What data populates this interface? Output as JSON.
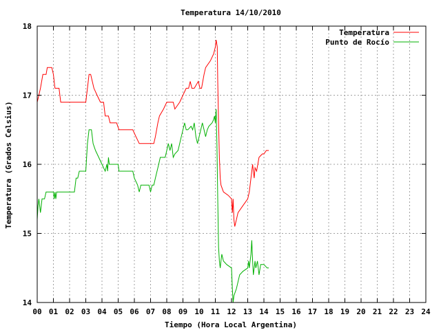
{
  "chart_data": {
    "type": "line",
    "title": "Temperatura 14/10/2010",
    "xlabel": "Tiempo (Hora Local Argentina)",
    "ylabel": "Temperatura (Grados Celsius)",
    "xlim": [
      0,
      24
    ],
    "ylim": [
      14,
      18
    ],
    "xticks": [
      "00",
      "01",
      "02",
      "03",
      "04",
      "05",
      "06",
      "07",
      "08",
      "09",
      "10",
      "11",
      "12",
      "13",
      "14",
      "15",
      "16",
      "17",
      "18",
      "19",
      "20",
      "21",
      "22",
      "23",
      "24"
    ],
    "yticks": [
      "14",
      "15",
      "16",
      "17",
      "18"
    ],
    "grid": true,
    "legend_position": "top-right",
    "series": [
      {
        "name": "Temperatura",
        "color": "#ff0000",
        "points": [
          [
            0.0,
            16.9
          ],
          [
            0.1,
            17.0
          ],
          [
            0.2,
            17.1
          ],
          [
            0.35,
            17.3
          ],
          [
            0.55,
            17.3
          ],
          [
            0.62,
            17.4
          ],
          [
            0.9,
            17.4
          ],
          [
            1.0,
            17.3
          ],
          [
            1.1,
            17.1
          ],
          [
            1.35,
            17.1
          ],
          [
            1.45,
            16.9
          ],
          [
            3.0,
            16.9
          ],
          [
            3.1,
            17.1
          ],
          [
            3.2,
            17.3
          ],
          [
            3.3,
            17.3
          ],
          [
            3.5,
            17.1
          ],
          [
            3.7,
            17.0
          ],
          [
            3.9,
            16.9
          ],
          [
            4.1,
            16.9
          ],
          [
            4.2,
            16.7
          ],
          [
            4.4,
            16.7
          ],
          [
            4.5,
            16.6
          ],
          [
            4.9,
            16.6
          ],
          [
            5.05,
            16.5
          ],
          [
            5.9,
            16.5
          ],
          [
            6.1,
            16.4
          ],
          [
            6.3,
            16.3
          ],
          [
            7.2,
            16.3
          ],
          [
            7.3,
            16.4
          ],
          [
            7.45,
            16.6
          ],
          [
            7.55,
            16.7
          ],
          [
            7.8,
            16.8
          ],
          [
            8.0,
            16.9
          ],
          [
            8.4,
            16.9
          ],
          [
            8.5,
            16.8
          ],
          [
            8.8,
            16.9
          ],
          [
            9.0,
            17.0
          ],
          [
            9.2,
            17.1
          ],
          [
            9.35,
            17.1
          ],
          [
            9.45,
            17.2
          ],
          [
            9.55,
            17.1
          ],
          [
            9.7,
            17.1
          ],
          [
            9.95,
            17.2
          ],
          [
            10.05,
            17.1
          ],
          [
            10.15,
            17.1
          ],
          [
            10.3,
            17.3
          ],
          [
            10.4,
            17.4
          ],
          [
            10.7,
            17.5
          ],
          [
            10.9,
            17.6
          ],
          [
            11.0,
            17.7
          ],
          [
            11.05,
            17.8
          ],
          [
            11.12,
            17.7
          ],
          [
            11.15,
            17.2
          ],
          [
            11.2,
            16.6
          ],
          [
            11.25,
            16.1
          ],
          [
            11.3,
            15.8
          ],
          [
            11.35,
            15.7
          ],
          [
            11.5,
            15.6
          ],
          [
            11.8,
            15.55
          ],
          [
            12.0,
            15.5
          ],
          [
            12.05,
            15.3
          ],
          [
            12.1,
            15.5
          ],
          [
            12.15,
            15.2
          ],
          [
            12.2,
            15.1
          ],
          [
            12.3,
            15.2
          ],
          [
            12.4,
            15.3
          ],
          [
            12.7,
            15.4
          ],
          [
            13.0,
            15.5
          ],
          [
            13.1,
            15.6
          ],
          [
            13.2,
            15.8
          ],
          [
            13.3,
            16.0
          ],
          [
            13.35,
            15.9
          ],
          [
            13.4,
            15.8
          ],
          [
            13.45,
            15.95
          ],
          [
            13.55,
            15.9
          ],
          [
            13.7,
            16.1
          ],
          [
            13.9,
            16.15
          ],
          [
            14.0,
            16.15
          ],
          [
            14.15,
            16.2
          ],
          [
            14.3,
            16.2
          ]
        ]
      },
      {
        "name": "Punto de Rocío",
        "color": "#00b000",
        "points": [
          [
            0.0,
            15.2
          ],
          [
            0.05,
            15.4
          ],
          [
            0.1,
            15.5
          ],
          [
            0.2,
            15.3
          ],
          [
            0.3,
            15.5
          ],
          [
            0.45,
            15.5
          ],
          [
            0.55,
            15.6
          ],
          [
            1.0,
            15.6
          ],
          [
            1.05,
            15.5
          ],
          [
            1.1,
            15.6
          ],
          [
            1.15,
            15.5
          ],
          [
            1.2,
            15.6
          ],
          [
            2.3,
            15.6
          ],
          [
            2.4,
            15.8
          ],
          [
            2.5,
            15.8
          ],
          [
            2.6,
            15.9
          ],
          [
            3.0,
            15.9
          ],
          [
            3.05,
            16.1
          ],
          [
            3.1,
            16.3
          ],
          [
            3.2,
            16.5
          ],
          [
            3.35,
            16.5
          ],
          [
            3.45,
            16.3
          ],
          [
            3.6,
            16.2
          ],
          [
            3.8,
            16.1
          ],
          [
            4.0,
            16.0
          ],
          [
            4.2,
            15.9
          ],
          [
            4.3,
            16.0
          ],
          [
            4.35,
            15.9
          ],
          [
            4.4,
            16.1
          ],
          [
            4.45,
            16.0
          ],
          [
            5.0,
            16.0
          ],
          [
            5.05,
            15.9
          ],
          [
            5.9,
            15.9
          ],
          [
            6.0,
            15.8
          ],
          [
            6.2,
            15.7
          ],
          [
            6.3,
            15.6
          ],
          [
            6.4,
            15.7
          ],
          [
            6.9,
            15.7
          ],
          [
            7.0,
            15.6
          ],
          [
            7.1,
            15.7
          ],
          [
            7.2,
            15.7
          ],
          [
            7.3,
            15.8
          ],
          [
            7.5,
            16.0
          ],
          [
            7.6,
            16.1
          ],
          [
            7.9,
            16.1
          ],
          [
            8.0,
            16.2
          ],
          [
            8.1,
            16.3
          ],
          [
            8.2,
            16.2
          ],
          [
            8.3,
            16.3
          ],
          [
            8.4,
            16.1
          ],
          [
            8.5,
            16.15
          ],
          [
            8.7,
            16.2
          ],
          [
            8.8,
            16.3
          ],
          [
            8.9,
            16.4
          ],
          [
            9.0,
            16.5
          ],
          [
            9.1,
            16.6
          ],
          [
            9.2,
            16.5
          ],
          [
            9.3,
            16.5
          ],
          [
            9.5,
            16.55
          ],
          [
            9.6,
            16.5
          ],
          [
            9.7,
            16.6
          ],
          [
            9.8,
            16.4
          ],
          [
            9.9,
            16.3
          ],
          [
            10.0,
            16.4
          ],
          [
            10.1,
            16.5
          ],
          [
            10.2,
            16.6
          ],
          [
            10.3,
            16.5
          ],
          [
            10.4,
            16.4
          ],
          [
            10.5,
            16.5
          ],
          [
            10.6,
            16.55
          ],
          [
            10.8,
            16.6
          ],
          [
            10.9,
            16.65
          ],
          [
            10.95,
            16.7
          ],
          [
            11.0,
            16.6
          ],
          [
            11.05,
            16.8
          ],
          [
            11.1,
            16.3
          ],
          [
            11.15,
            15.5
          ],
          [
            11.2,
            14.8
          ],
          [
            11.25,
            14.6
          ],
          [
            11.3,
            14.5
          ],
          [
            11.35,
            14.6
          ],
          [
            11.4,
            14.7
          ],
          [
            11.5,
            14.6
          ],
          [
            11.7,
            14.55
          ],
          [
            12.0,
            14.5
          ],
          [
            12.05,
            14.2
          ],
          [
            12.1,
            14.0
          ],
          [
            12.15,
            14.1
          ],
          [
            12.3,
            14.2
          ],
          [
            12.5,
            14.4
          ],
          [
            12.7,
            14.45
          ],
          [
            13.0,
            14.5
          ],
          [
            13.05,
            14.6
          ],
          [
            13.1,
            14.5
          ],
          [
            13.2,
            14.7
          ],
          [
            13.25,
            14.9
          ],
          [
            13.3,
            14.6
          ],
          [
            13.35,
            14.4
          ],
          [
            13.45,
            14.6
          ],
          [
            13.5,
            14.5
          ],
          [
            13.6,
            14.6
          ],
          [
            13.7,
            14.4
          ],
          [
            13.8,
            14.55
          ],
          [
            14.0,
            14.55
          ],
          [
            14.2,
            14.5
          ],
          [
            14.3,
            14.5
          ]
        ]
      }
    ]
  }
}
